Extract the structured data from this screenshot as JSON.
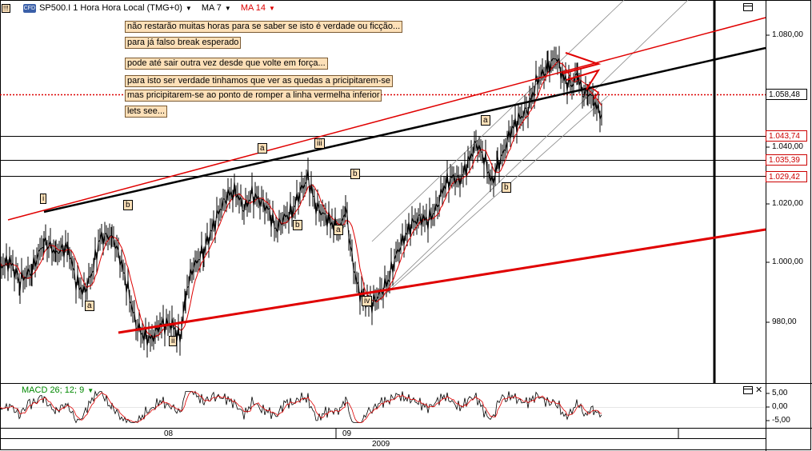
{
  "header": {
    "symbol": "SP500.I 1 Hora Hora Local (TMG+0)",
    "ma1": "MA 7",
    "ma2": "MA 14",
    "corner_badge": "!!!",
    "logo_text": "CFD"
  },
  "annotations": [
    "não restarão muitas horas para se saber se isto é verdade ou ficção...",
    "para já falso break esperado",
    "pode até sair outra vez desde que volte em força...",
    "para isto ser verdade tinhamos que ver as quedas a pricipitarem-se",
    "mas pricipitarem-se ao ponto de romper a linha vermelha inferior",
    "lets see..."
  ],
  "wave_labels": [
    "i",
    "a",
    "b",
    "ii",
    "a",
    "iii",
    "b",
    "b",
    "a",
    "iv",
    "a",
    "b"
  ],
  "price_axis": {
    "ticks": [
      "1.080,00",
      "1.040,00",
      "1.020,00",
      "1.000,00",
      "980,00"
    ],
    "current_price": "1.058,48",
    "levels": [
      "1.043,74",
      "1.035,39",
      "1.029,42"
    ]
  },
  "macd": {
    "label": "MACD 26; 12; 9",
    "ticks": [
      "5,00",
      "0,00",
      "-5,00"
    ]
  },
  "time_axis": {
    "labels": [
      "08",
      "09"
    ],
    "year": "2009"
  },
  "colors": {
    "up": "#000000",
    "down": "#000000",
    "ma7": "#000000",
    "ma14": "#dd0000",
    "trendline_red": "#e00000",
    "trendline_black": "#000000",
    "note_bg": "#fde0b8",
    "macd_line": "#000000",
    "macd_signal": "#dd0000"
  },
  "chart_data": {
    "type": "line",
    "title": "SP500.I 1 Hora Hora Local (TMG+0)",
    "ylim": [
      965,
      1092
    ],
    "y_ticks": [
      980,
      1000,
      1020,
      1040,
      1080
    ],
    "series": [
      {
        "name": "SP500.I",
        "x": [
          0,
          12,
          25,
          40,
          55,
          70,
          85,
          95,
          105,
          115,
          125,
          140,
          150,
          160,
          170,
          180,
          190,
          200,
          215,
          225,
          232,
          240,
          255,
          265,
          275,
          285,
          295,
          305,
          315,
          325,
          335,
          345,
          355,
          365,
          375,
          385,
          395,
          405,
          415,
          425,
          432,
          440,
          448,
          455,
          465,
          475,
          485,
          495,
          505,
          515,
          525,
          535,
          545,
          555,
          565,
          575,
          585,
          595,
          605,
          615,
          622,
          630,
          638,
          648,
          660,
          672,
          685,
          695,
          705,
          715,
          722,
          728,
          735,
          742,
          748,
          752
        ],
        "values": [
          1005,
          1007,
          1000,
          1004,
          1014,
          1010,
          1012,
          1000,
          996,
          1003,
          1015,
          1016,
          1008,
          997,
          985,
          981,
          980,
          985,
          985,
          980,
          995,
          1004,
          1011,
          1018,
          1025,
          1030,
          1031,
          1025,
          1030,
          1028,
          1025,
          1018,
          1022,
          1024,
          1031,
          1036,
          1026,
          1023,
          1020,
          1018,
          1026,
          1008,
          997,
          994,
          992,
          996,
          1000,
          1009,
          1015,
          1020,
          1022,
          1021,
          1025,
          1033,
          1036,
          1035,
          1041,
          1048,
          1043,
          1034,
          1040,
          1045,
          1052,
          1056,
          1060,
          1070,
          1074,
          1078,
          1070,
          1068,
          1072,
          1065,
          1066,
          1063,
          1059,
          1058
        ]
      }
    ],
    "overlays": [
      "MA 7",
      "MA 14"
    ],
    "indicator": {
      "name": "MACD 26; 12; 9",
      "ylim": [
        -7,
        7
      ],
      "y_ticks": [
        5,
        0,
        -5
      ]
    }
  }
}
